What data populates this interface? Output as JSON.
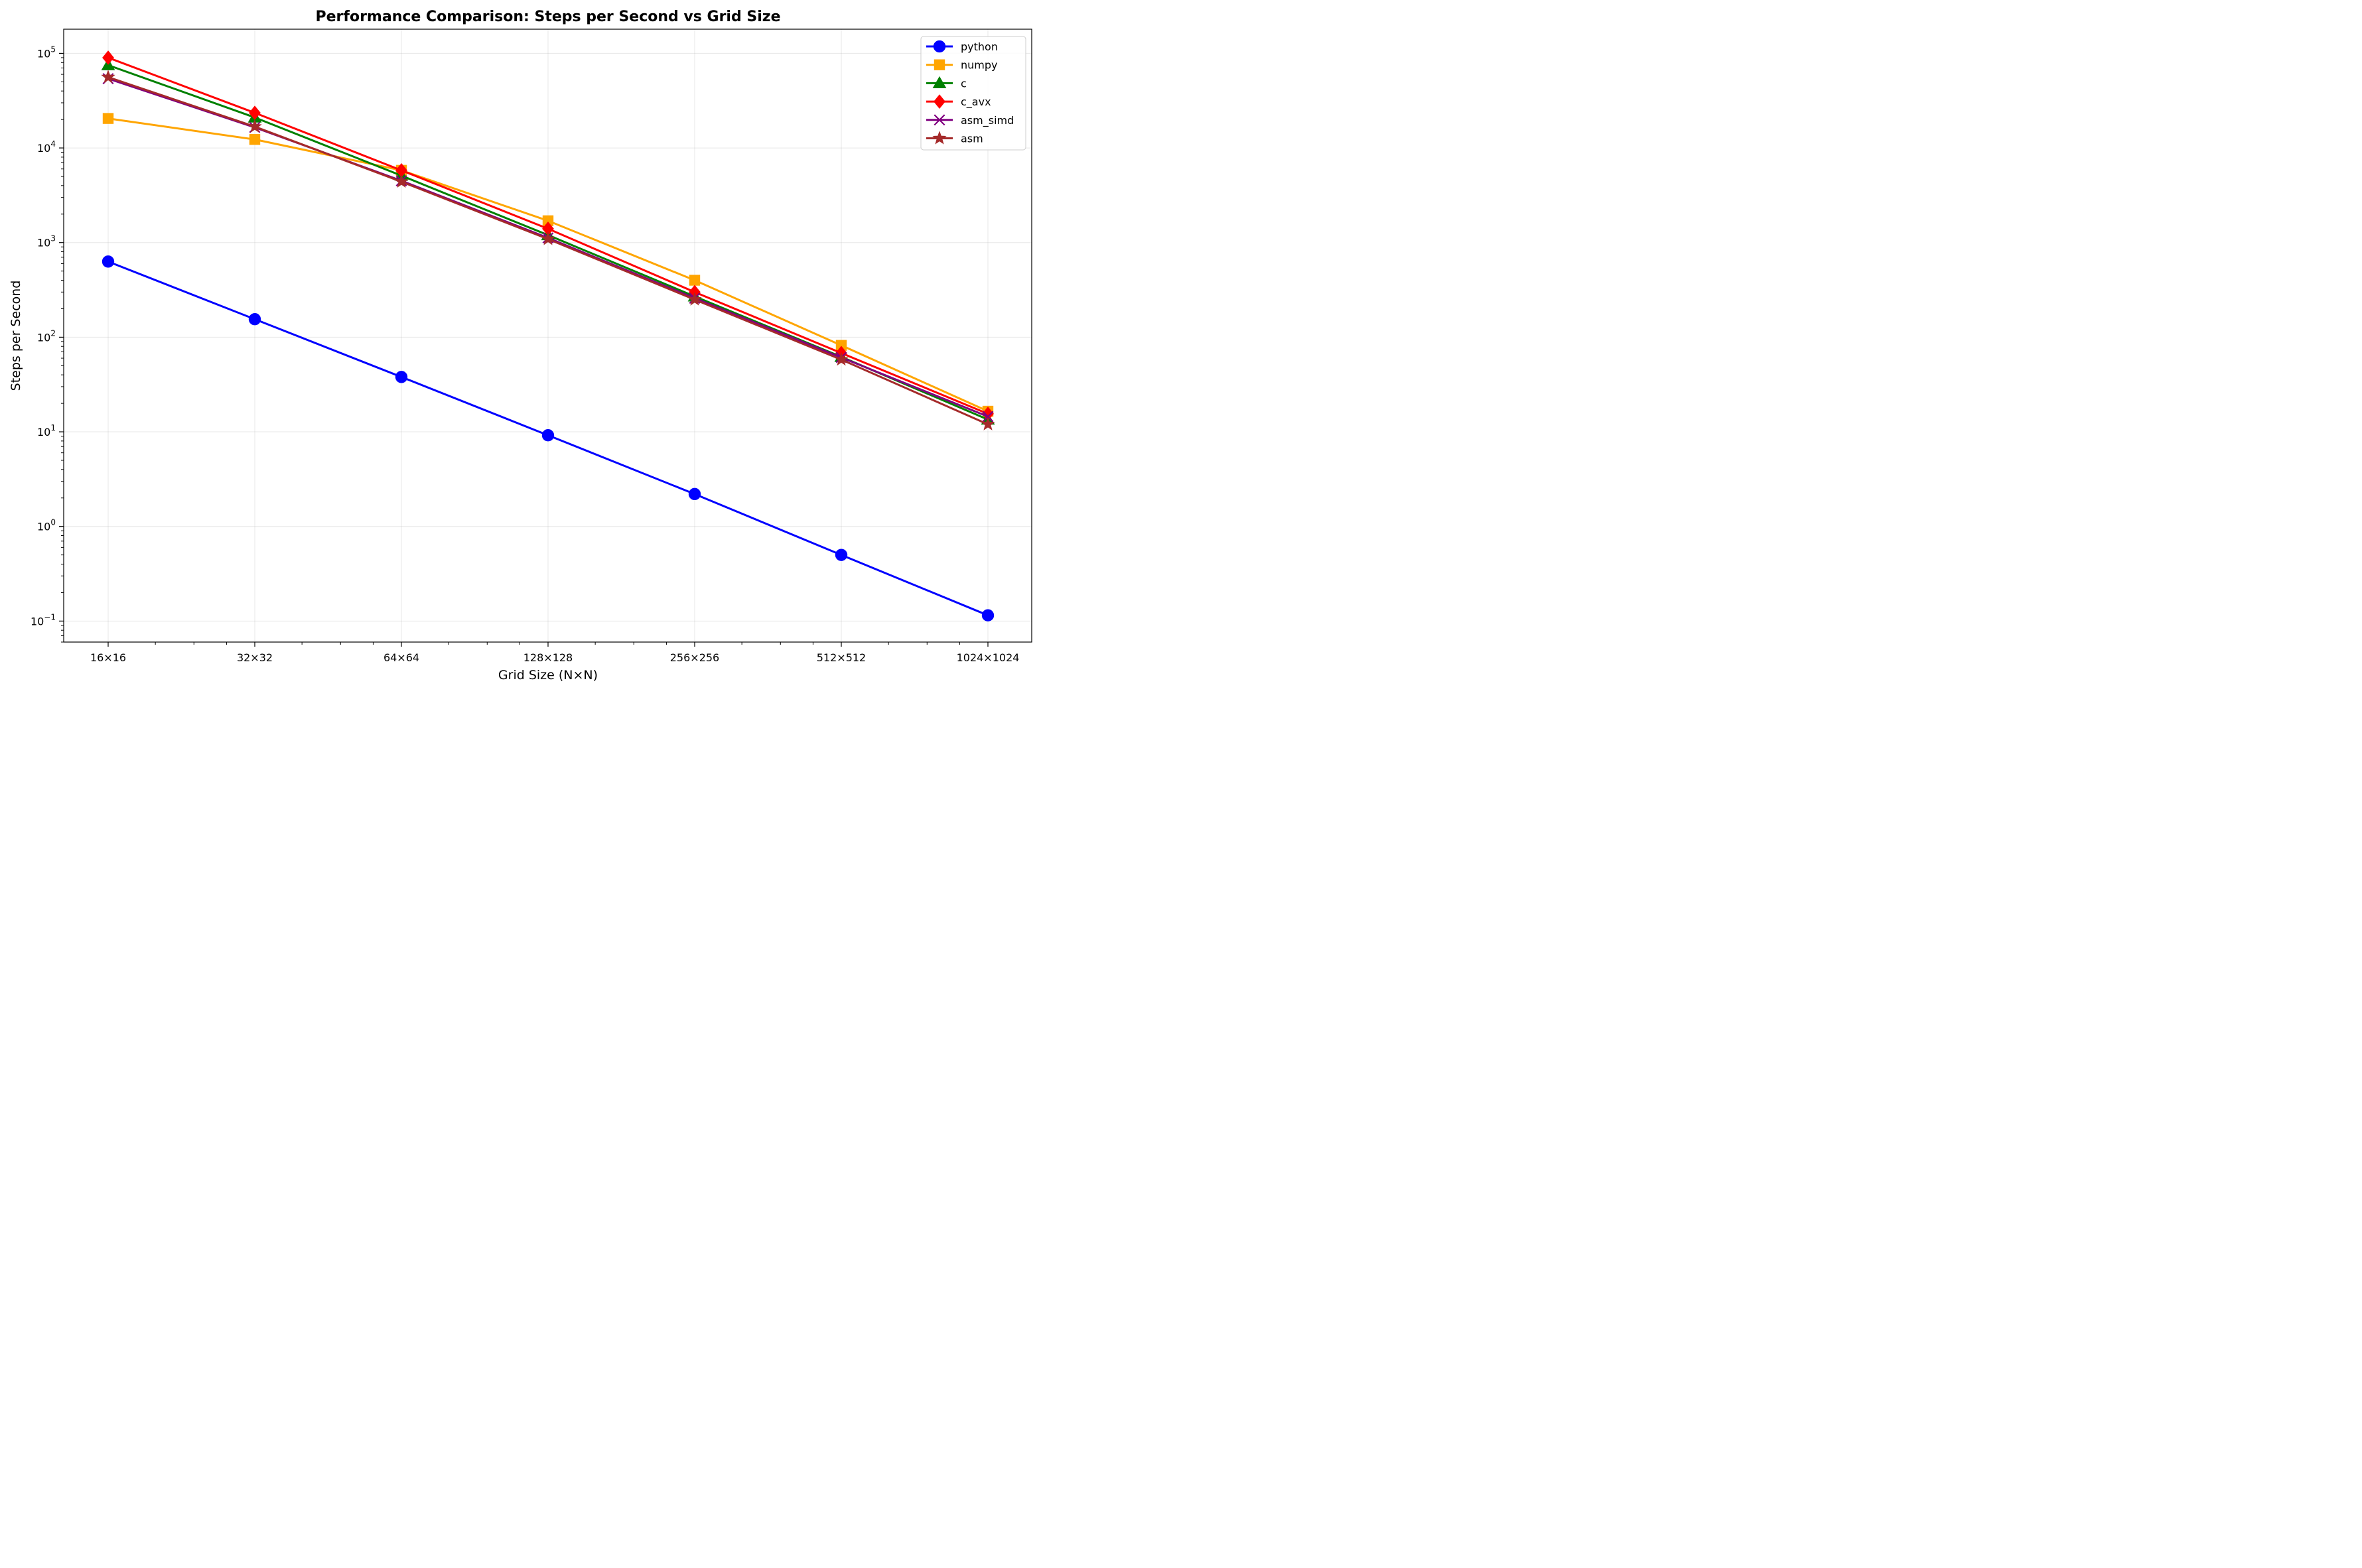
{
  "chart_data": {
    "type": "line",
    "title": "Performance Comparison: Steps per Second vs Grid Size",
    "xlabel": "Grid Size (N×N)",
    "ylabel": "Steps per Second",
    "x_scale": "log2",
    "y_scale": "log10",
    "x": [
      16,
      32,
      64,
      128,
      256,
      512,
      1024
    ],
    "categories": [
      "16×16",
      "32×32",
      "64×64",
      "128×128",
      "256×256",
      "512×512",
      "1024×1024"
    ],
    "y_ticks": [
      {
        "value": 0.1,
        "mantissa": "10",
        "exp": "−1"
      },
      {
        "value": 1,
        "mantissa": "10",
        "exp": "0"
      },
      {
        "value": 10,
        "mantissa": "10",
        "exp": "1"
      },
      {
        "value": 100,
        "mantissa": "10",
        "exp": "2"
      },
      {
        "value": 1000,
        "mantissa": "10",
        "exp": "3"
      },
      {
        "value": 10000,
        "mantissa": "10",
        "exp": "4"
      },
      {
        "value": 100000,
        "mantissa": "10",
        "exp": "5"
      }
    ],
    "ylim": [
      0.06,
      180000
    ],
    "grid": true,
    "legend_position": "top-right",
    "series": [
      {
        "name": "python",
        "color": "#0000ff",
        "marker": "circle",
        "values": [
          630,
          155,
          38,
          9.2,
          2.2,
          0.5,
          0.115
        ]
      },
      {
        "name": "numpy",
        "color": "#ffa500",
        "marker": "square",
        "values": [
          20500,
          12300,
          5800,
          1700,
          400,
          82,
          16.5
        ]
      },
      {
        "name": "c",
        "color": "#008000",
        "marker": "triangle",
        "values": [
          75000,
          21000,
          5100,
          1200,
          270,
          62,
          13.5
        ]
      },
      {
        "name": "c_avx",
        "color": "#ff0000",
        "marker": "diamond",
        "values": [
          90000,
          23500,
          5800,
          1400,
          300,
          68,
          15.5
        ]
      },
      {
        "name": "asm_simd",
        "color": "#800080",
        "marker": "x",
        "values": [
          54000,
          16500,
          4500,
          1120,
          258,
          61,
          14.5
        ]
      },
      {
        "name": "asm",
        "color": "#a52a2a",
        "marker": "star",
        "values": [
          56000,
          16800,
          4400,
          1090,
          250,
          58,
          12
        ]
      }
    ]
  }
}
